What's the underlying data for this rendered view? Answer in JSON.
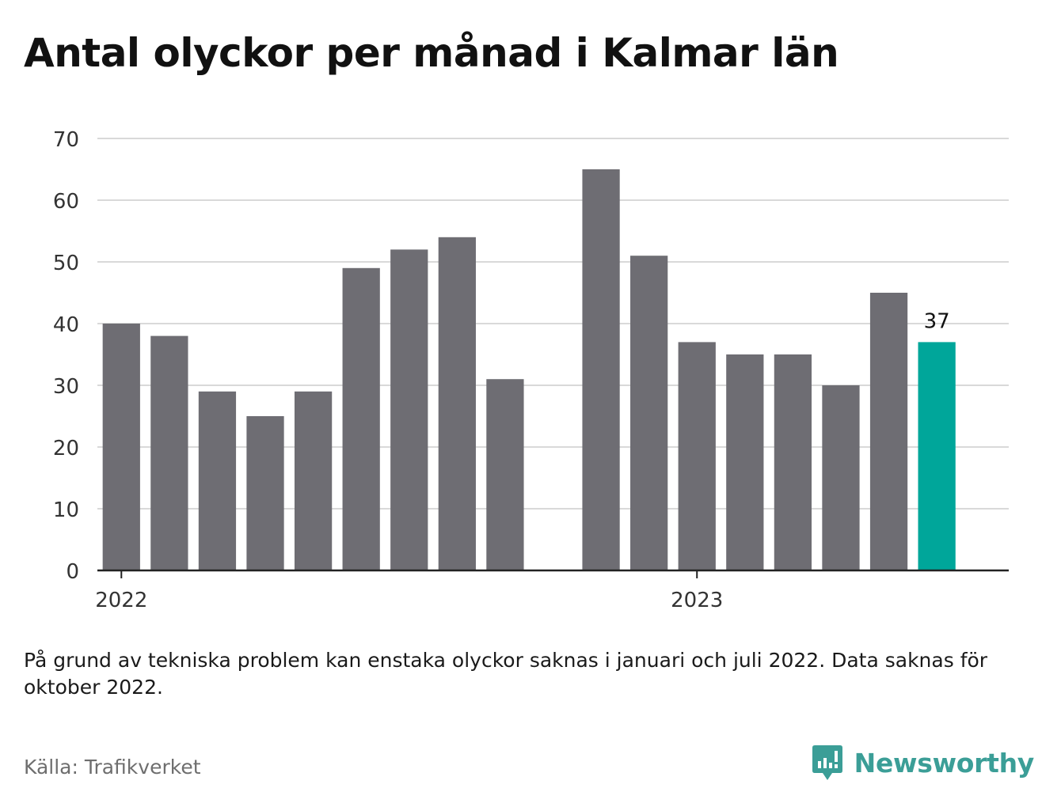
{
  "title": "Antal olyckor per månad i Kalmar län",
  "note": "På grund av tekniska problem kan enstaka olyckor saknas i januari och juli 2022. Data saknas för oktober 2022.",
  "source": "Källa: Trafikverket",
  "brand": {
    "name": "Newsworthy",
    "icon": "newsworthy-logo-icon"
  },
  "colors": {
    "bar": "#6e6d73",
    "highlight": "#00a69a",
    "grid": "#d9d9d9",
    "axis": "#222222"
  },
  "chart_data": {
    "type": "bar",
    "ylim": [
      0,
      70
    ],
    "yticks": [
      0,
      10,
      20,
      30,
      40,
      50,
      60,
      70
    ],
    "xticks": [
      {
        "label": "2022",
        "at": "2022-01"
      },
      {
        "label": "2023",
        "at": "2023-01"
      }
    ],
    "categories": [
      "2022-01",
      "2022-02",
      "2022-03",
      "2022-04",
      "2022-05",
      "2022-06",
      "2022-07",
      "2022-08",
      "2022-09",
      "2022-10",
      "2022-11",
      "2022-12",
      "2023-01",
      "2023-02",
      "2023-03",
      "2023-04",
      "2023-05",
      "2023-06",
      "2023-07"
    ],
    "values": [
      40,
      38,
      29,
      25,
      29,
      49,
      52,
      54,
      31,
      null,
      65,
      51,
      37,
      35,
      35,
      30,
      45,
      37,
      null
    ],
    "highlight_label": "37",
    "grid": true,
    "legend": "none"
  }
}
